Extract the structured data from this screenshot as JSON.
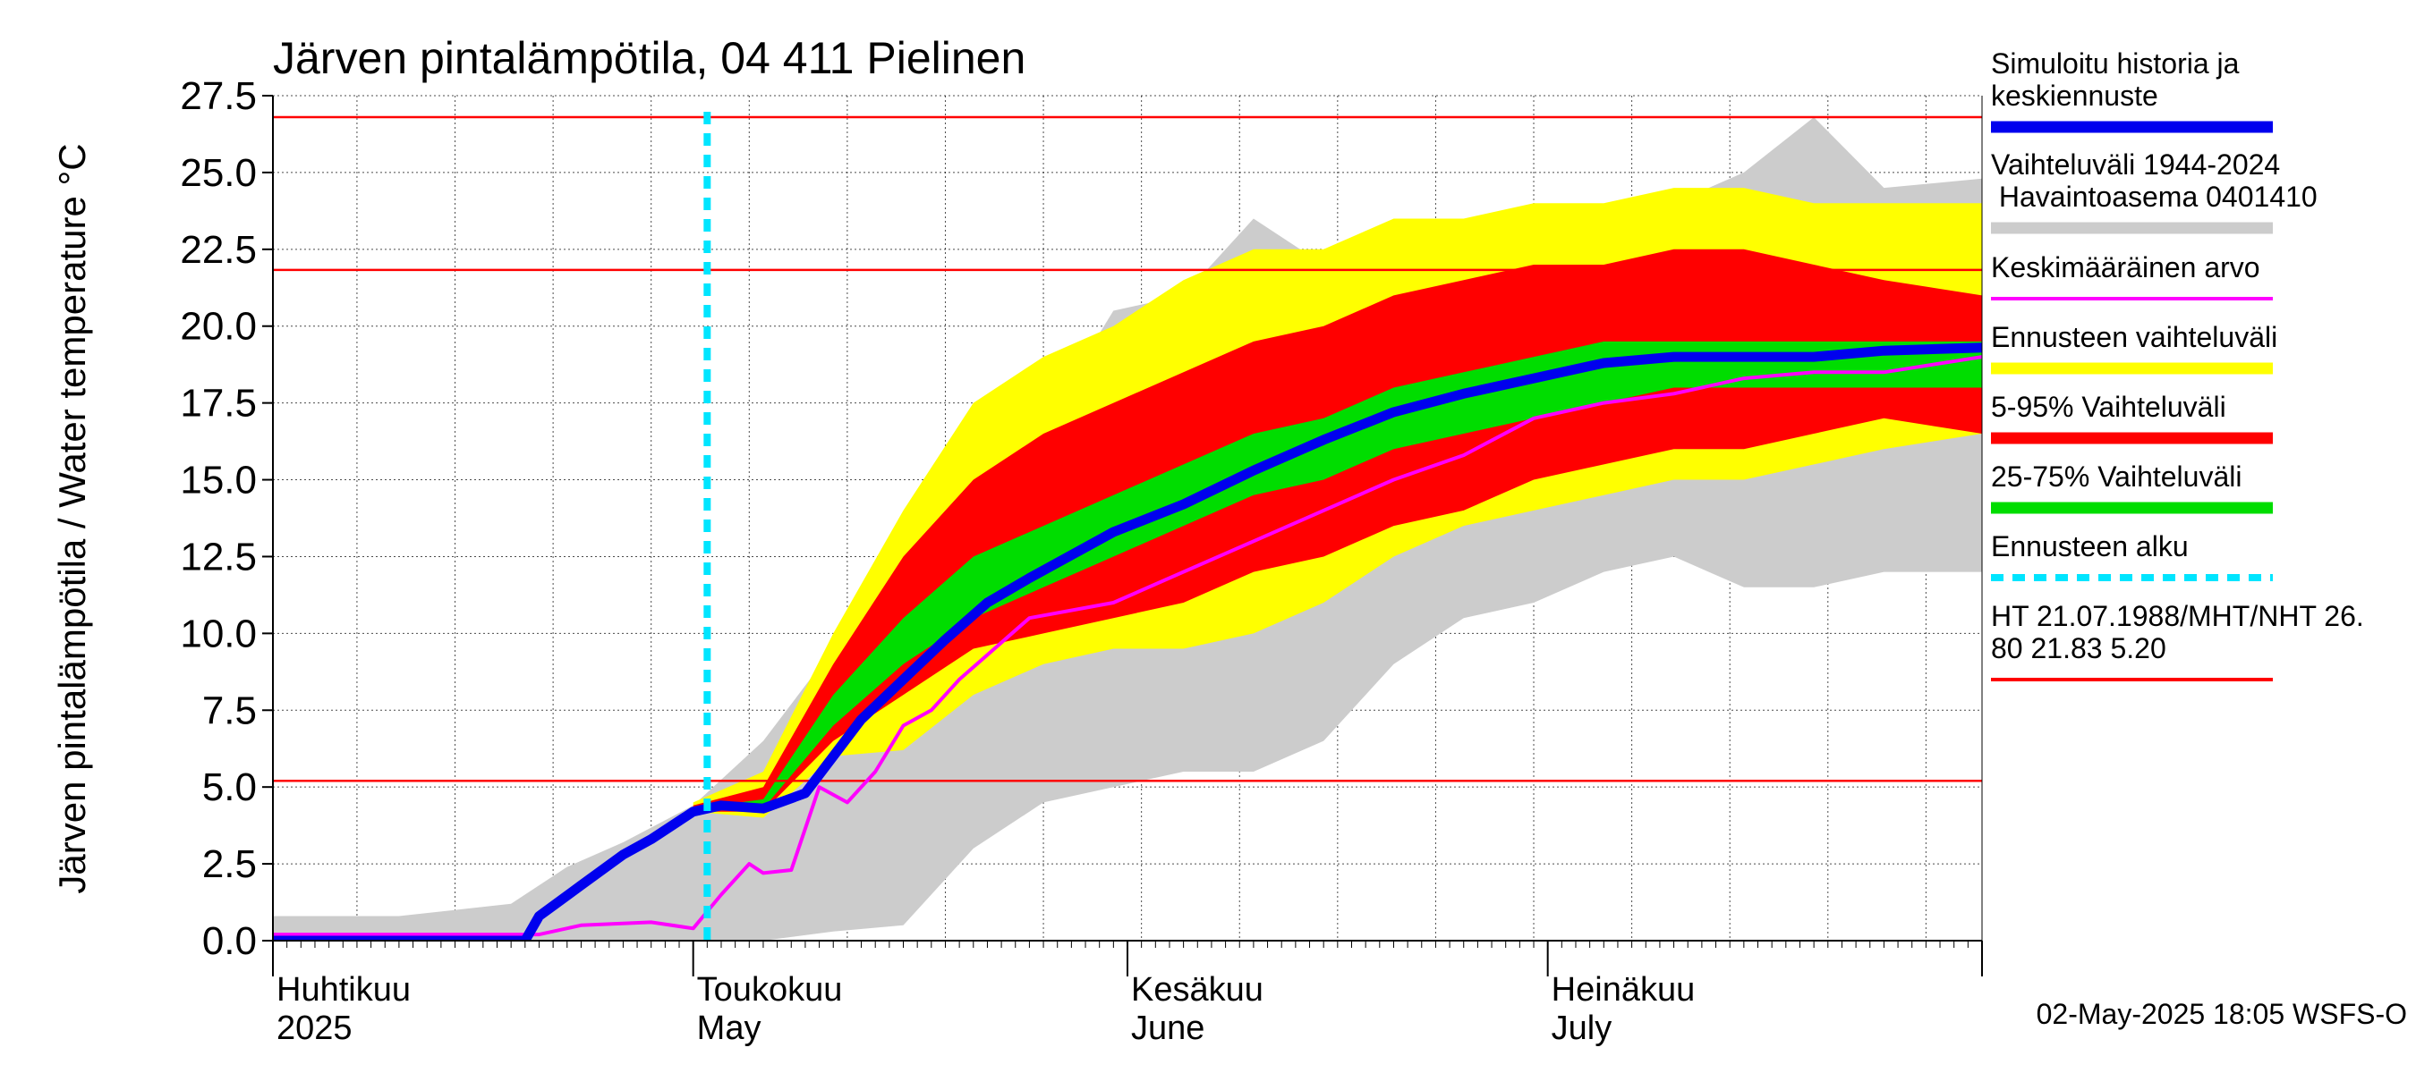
{
  "chart_data": {
    "type": "area",
    "title": "Järven pintalämpötila, 04 411 Pielinen",
    "ylabel": "Järven pintalämpötila / Water temperature °C",
    "xlabel": "",
    "ylim": [
      0,
      27.5
    ],
    "yticks": [
      "0.0",
      "2.5",
      "5.0",
      "7.5",
      "10.0",
      "12.5",
      "15.0",
      "17.5",
      "20.0",
      "22.5",
      "25.0",
      "27.5"
    ],
    "xlim": [
      "2025-04-01",
      "2025-08-01"
    ],
    "month_labels": [
      {
        "date": "2025-04-01",
        "fi": "Huhtikuu",
        "en": "2025"
      },
      {
        "date": "2025-05-01",
        "fi": "Toukokuu",
        "en": "May"
      },
      {
        "date": "2025-06-01",
        "fi": "Kesäkuu",
        "en": "June"
      },
      {
        "date": "2025-07-01",
        "fi": "Heinäkuu",
        "en": "July"
      }
    ],
    "grid": true,
    "forecast_start": "2025-05-02",
    "reference_lines": [
      26.8,
      21.83,
      5.2
    ],
    "legend_position": "right",
    "legend": [
      {
        "label": "Simuloitu historia ja keskiennuste",
        "color": "#0000ee",
        "style": "thick"
      },
      {
        "label": "Vaihteluväli 1944-2024 Havaintoasema 0401410",
        "color": "#cccccc",
        "style": "thick"
      },
      {
        "label": "Keskimääräinen arvo",
        "color": "#ff00ff",
        "style": "thin"
      },
      {
        "label": "Ennusteen vaihteluväli",
        "color": "#ffff00",
        "style": "thick"
      },
      {
        "label": "5-95% Vaihteluväli",
        "color": "#ff0000",
        "style": "thick"
      },
      {
        "label": "25-75% Vaihteluväli",
        "color": "#00dd00",
        "style": "thick"
      },
      {
        "label": "Ennusteen alku",
        "color": "#00e5ff",
        "style": "dashed"
      },
      {
        "label": "HT 21.07.1988/MHT/NHT 26.80 21.83 5.20",
        "color": "#ff0000",
        "style": "thin"
      }
    ],
    "series": [
      {
        "name": "Vaihteluväli 1944-2024 Havaintoasema 0401410",
        "role": "band",
        "color": "#cccccc",
        "x": [
          "2025-04-01",
          "2025-04-10",
          "2025-04-18",
          "2025-04-22",
          "2025-04-26",
          "2025-05-01",
          "2025-05-06",
          "2025-05-11",
          "2025-05-16",
          "2025-05-21",
          "2025-05-26",
          "2025-05-31",
          "2025-06-05",
          "2025-06-10",
          "2025-06-15",
          "2025-06-20",
          "2025-06-25",
          "2025-06-30",
          "2025-07-05",
          "2025-07-10",
          "2025-07-15",
          "2025-07-20",
          "2025-07-25",
          "2025-08-01"
        ],
        "upper": [
          0.8,
          0.8,
          1.2,
          2.4,
          3.2,
          4.4,
          6.5,
          9.5,
          13.0,
          17.0,
          16.8,
          20.5,
          21.0,
          23.5,
          22.0,
          22.5,
          21.8,
          22.5,
          23.8,
          24.0,
          25.0,
          26.8,
          24.5,
          24.8
        ],
        "lower": [
          0.0,
          0.0,
          0.0,
          0.0,
          0.0,
          0.0,
          0.0,
          0.3,
          0.5,
          3.0,
          4.5,
          5.0,
          5.5,
          5.5,
          6.5,
          9.0,
          10.5,
          11.0,
          12.0,
          12.5,
          11.5,
          11.5,
          12.0,
          12.0
        ]
      },
      {
        "name": "Ennusteen vaihteluväli",
        "role": "band",
        "color": "#ffff00",
        "x": [
          "2025-05-01",
          "2025-05-06",
          "2025-05-11",
          "2025-05-16",
          "2025-05-21",
          "2025-05-26",
          "2025-05-31",
          "2025-06-05",
          "2025-06-10",
          "2025-06-15",
          "2025-06-20",
          "2025-06-25",
          "2025-06-30",
          "2025-07-05",
          "2025-07-10",
          "2025-07-15",
          "2025-07-20",
          "2025-07-25",
          "2025-08-01"
        ],
        "upper": [
          4.5,
          5.5,
          10.0,
          14.0,
          17.5,
          19.0,
          20.0,
          21.5,
          22.5,
          22.5,
          23.5,
          23.5,
          24.0,
          24.0,
          24.5,
          24.5,
          24.0,
          24.0,
          24.0
        ],
        "lower": [
          4.2,
          4.0,
          6.0,
          6.2,
          8.0,
          9.0,
          9.5,
          9.5,
          10.0,
          11.0,
          12.5,
          13.5,
          14.0,
          14.5,
          15.0,
          15.0,
          15.5,
          16.0,
          16.5
        ]
      },
      {
        "name": "5-95% Vaihteluväli",
        "role": "band",
        "color": "#ff0000",
        "x": [
          "2025-05-01",
          "2025-05-06",
          "2025-05-11",
          "2025-05-16",
          "2025-05-21",
          "2025-05-26",
          "2025-05-31",
          "2025-06-05",
          "2025-06-10",
          "2025-06-15",
          "2025-06-20",
          "2025-06-25",
          "2025-06-30",
          "2025-07-05",
          "2025-07-10",
          "2025-07-15",
          "2025-07-20",
          "2025-07-25",
          "2025-08-01"
        ],
        "upper": [
          4.4,
          5.0,
          9.0,
          12.5,
          15.0,
          16.5,
          17.5,
          18.5,
          19.5,
          20.0,
          21.0,
          21.5,
          22.0,
          22.0,
          22.5,
          22.5,
          22.0,
          21.5,
          21.0
        ],
        "lower": [
          4.2,
          4.2,
          6.5,
          8.0,
          9.5,
          10.0,
          10.5,
          11.0,
          12.0,
          12.5,
          13.5,
          14.0,
          15.0,
          15.5,
          16.0,
          16.0,
          16.5,
          17.0,
          16.5
        ]
      },
      {
        "name": "25-75% Vaihteluväli",
        "role": "band",
        "color": "#00dd00",
        "x": [
          "2025-05-01",
          "2025-05-06",
          "2025-05-11",
          "2025-05-16",
          "2025-05-21",
          "2025-05-26",
          "2025-05-31",
          "2025-06-05",
          "2025-06-10",
          "2025-06-15",
          "2025-06-20",
          "2025-06-25",
          "2025-06-30",
          "2025-07-05",
          "2025-07-10",
          "2025-07-15",
          "2025-07-20",
          "2025-07-25",
          "2025-08-01"
        ],
        "upper": [
          4.3,
          4.6,
          8.0,
          10.5,
          12.5,
          13.5,
          14.5,
          15.5,
          16.5,
          17.0,
          18.0,
          18.5,
          19.0,
          19.5,
          19.5,
          19.5,
          19.5,
          19.5,
          19.5
        ],
        "lower": [
          4.2,
          4.3,
          7.0,
          9.0,
          10.5,
          11.5,
          12.5,
          13.5,
          14.5,
          15.0,
          16.0,
          16.5,
          17.0,
          17.5,
          18.0,
          18.0,
          18.0,
          18.0,
          18.0
        ]
      },
      {
        "name": "Keskimääräinen arvo",
        "role": "line",
        "color": "#ff00ff",
        "x": [
          "2025-04-01",
          "2025-04-20",
          "2025-04-23",
          "2025-04-28",
          "2025-05-01",
          "2025-05-03",
          "2025-05-05",
          "2025-05-06",
          "2025-05-08",
          "2025-05-10",
          "2025-05-12",
          "2025-05-14",
          "2025-05-16",
          "2025-05-18",
          "2025-05-20",
          "2025-05-25",
          "2025-05-31",
          "2025-06-05",
          "2025-06-10",
          "2025-06-15",
          "2025-06-20",
          "2025-06-25",
          "2025-06-30",
          "2025-07-05",
          "2025-07-10",
          "2025-07-15",
          "2025-07-20",
          "2025-07-25",
          "2025-08-01"
        ],
        "values": [
          0.2,
          0.2,
          0.5,
          0.6,
          0.4,
          1.5,
          2.5,
          2.2,
          2.3,
          5.0,
          4.5,
          5.5,
          7.0,
          7.5,
          8.5,
          10.5,
          11.0,
          12.0,
          13.0,
          14.0,
          15.0,
          15.8,
          17.0,
          17.5,
          17.8,
          18.3,
          18.5,
          18.5,
          19.0
        ]
      },
      {
        "name": "Simuloitu historia ja keskiennuste",
        "role": "line",
        "color": "#0000ee",
        "x": [
          "2025-04-01",
          "2025-04-19",
          "2025-04-20",
          "2025-04-23",
          "2025-04-26",
          "2025-04-28",
          "2025-05-01",
          "2025-05-03",
          "2025-05-06",
          "2025-05-09",
          "2025-05-11",
          "2025-05-13",
          "2025-05-16",
          "2025-05-19",
          "2025-05-22",
          "2025-05-25",
          "2025-05-31",
          "2025-06-05",
          "2025-06-10",
          "2025-06-15",
          "2025-06-20",
          "2025-06-25",
          "2025-06-30",
          "2025-07-05",
          "2025-07-10",
          "2025-07-15",
          "2025-07-20",
          "2025-07-25",
          "2025-08-01"
        ],
        "values": [
          0.0,
          0.0,
          0.8,
          1.8,
          2.8,
          3.3,
          4.2,
          4.4,
          4.3,
          4.8,
          6.0,
          7.2,
          8.5,
          9.8,
          11.0,
          11.8,
          13.3,
          14.2,
          15.3,
          16.3,
          17.2,
          17.8,
          18.3,
          18.8,
          19.0,
          19.0,
          19.0,
          19.2,
          19.3
        ]
      }
    ]
  },
  "footer": {
    "timestamp": "02-May-2025 18:05 WSFS-O"
  }
}
